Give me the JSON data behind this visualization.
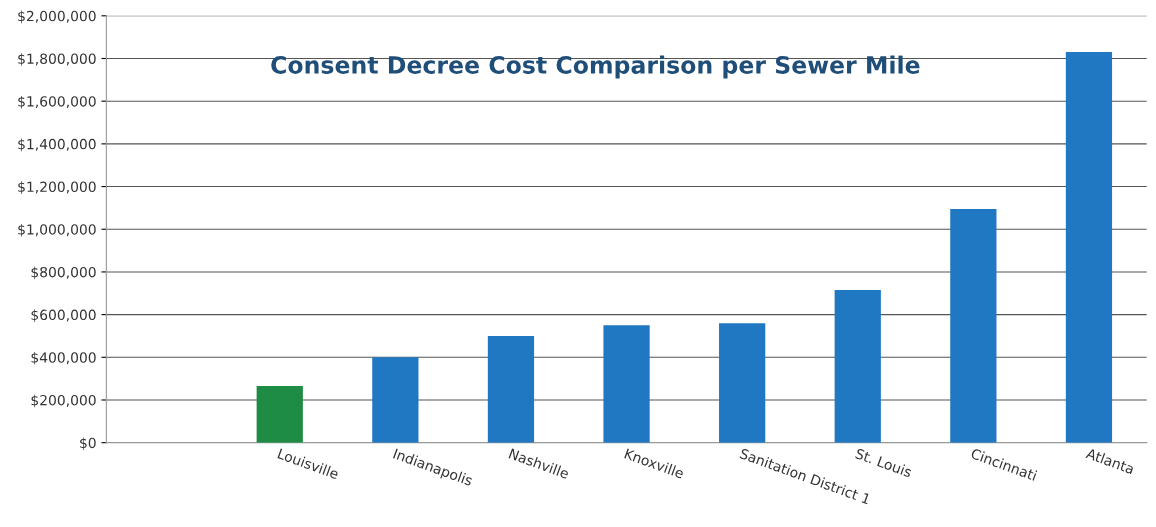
{
  "chart_data": {
    "type": "bar",
    "title": "Consent Decree Cost Comparison per Sewer Mile",
    "categories": [
      null,
      "Louisville",
      "Indianapolis",
      "Nashville",
      "Knoxville",
      "Sanitation District 1",
      "St. Louis",
      "Cincinnati",
      "Atlanta"
    ],
    "values": [
      null,
      265000,
      400000,
      500000,
      550000,
      560000,
      715000,
      1095000,
      1830000
    ],
    "colors": [
      "#1f78c1",
      "#1e8c45",
      "#1f78c1",
      "#1f78c1",
      "#1f78c1",
      "#1f78c1",
      "#1f78c1",
      "#1f78c1",
      "#1f78c1"
    ],
    "ylim": [
      0,
      2000000
    ],
    "yticks": [
      {
        "value": 0,
        "label": "$0"
      },
      {
        "value": 200000,
        "label": "$200,000"
      },
      {
        "value": 400000,
        "label": "$400,000"
      },
      {
        "value": 600000,
        "label": "$600,000"
      },
      {
        "value": 800000,
        "label": "$800,000"
      },
      {
        "value": 1000000,
        "label": "$1,000,000"
      },
      {
        "value": 1200000,
        "label": "$1,200,000"
      },
      {
        "value": 1400000,
        "label": "$1,400,000"
      },
      {
        "value": 1600000,
        "label": "$1,600,000"
      },
      {
        "value": 1800000,
        "label": "$1,800,000"
      },
      {
        "value": 2000000,
        "label": "$2,000,000"
      }
    ],
    "grid": "y"
  }
}
